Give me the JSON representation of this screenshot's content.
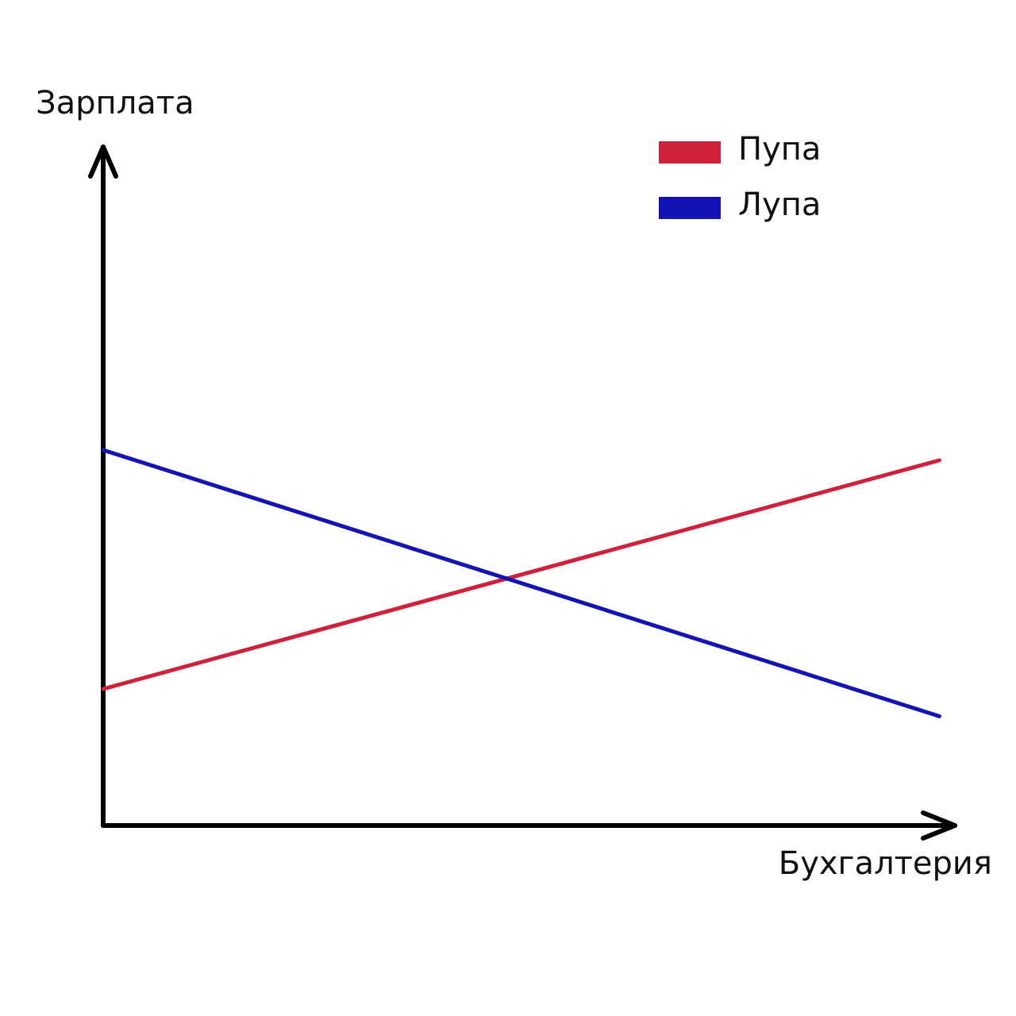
{
  "chart_data": {
    "type": "line",
    "y_label": "Зарплата",
    "x_label": "Бухгалтерия",
    "x": [
      0,
      98
    ],
    "series": [
      {
        "name": "Пупа",
        "color": "#d0213a",
        "values": [
          20,
          53.5
        ]
      },
      {
        "name": "Лупа",
        "color": "#1414b4",
        "values": [
          55,
          16
        ]
      }
    ],
    "xlim": [
      0,
      100
    ],
    "ylim": [
      0,
      100
    ],
    "legend": "upper right",
    "grid": false
  }
}
